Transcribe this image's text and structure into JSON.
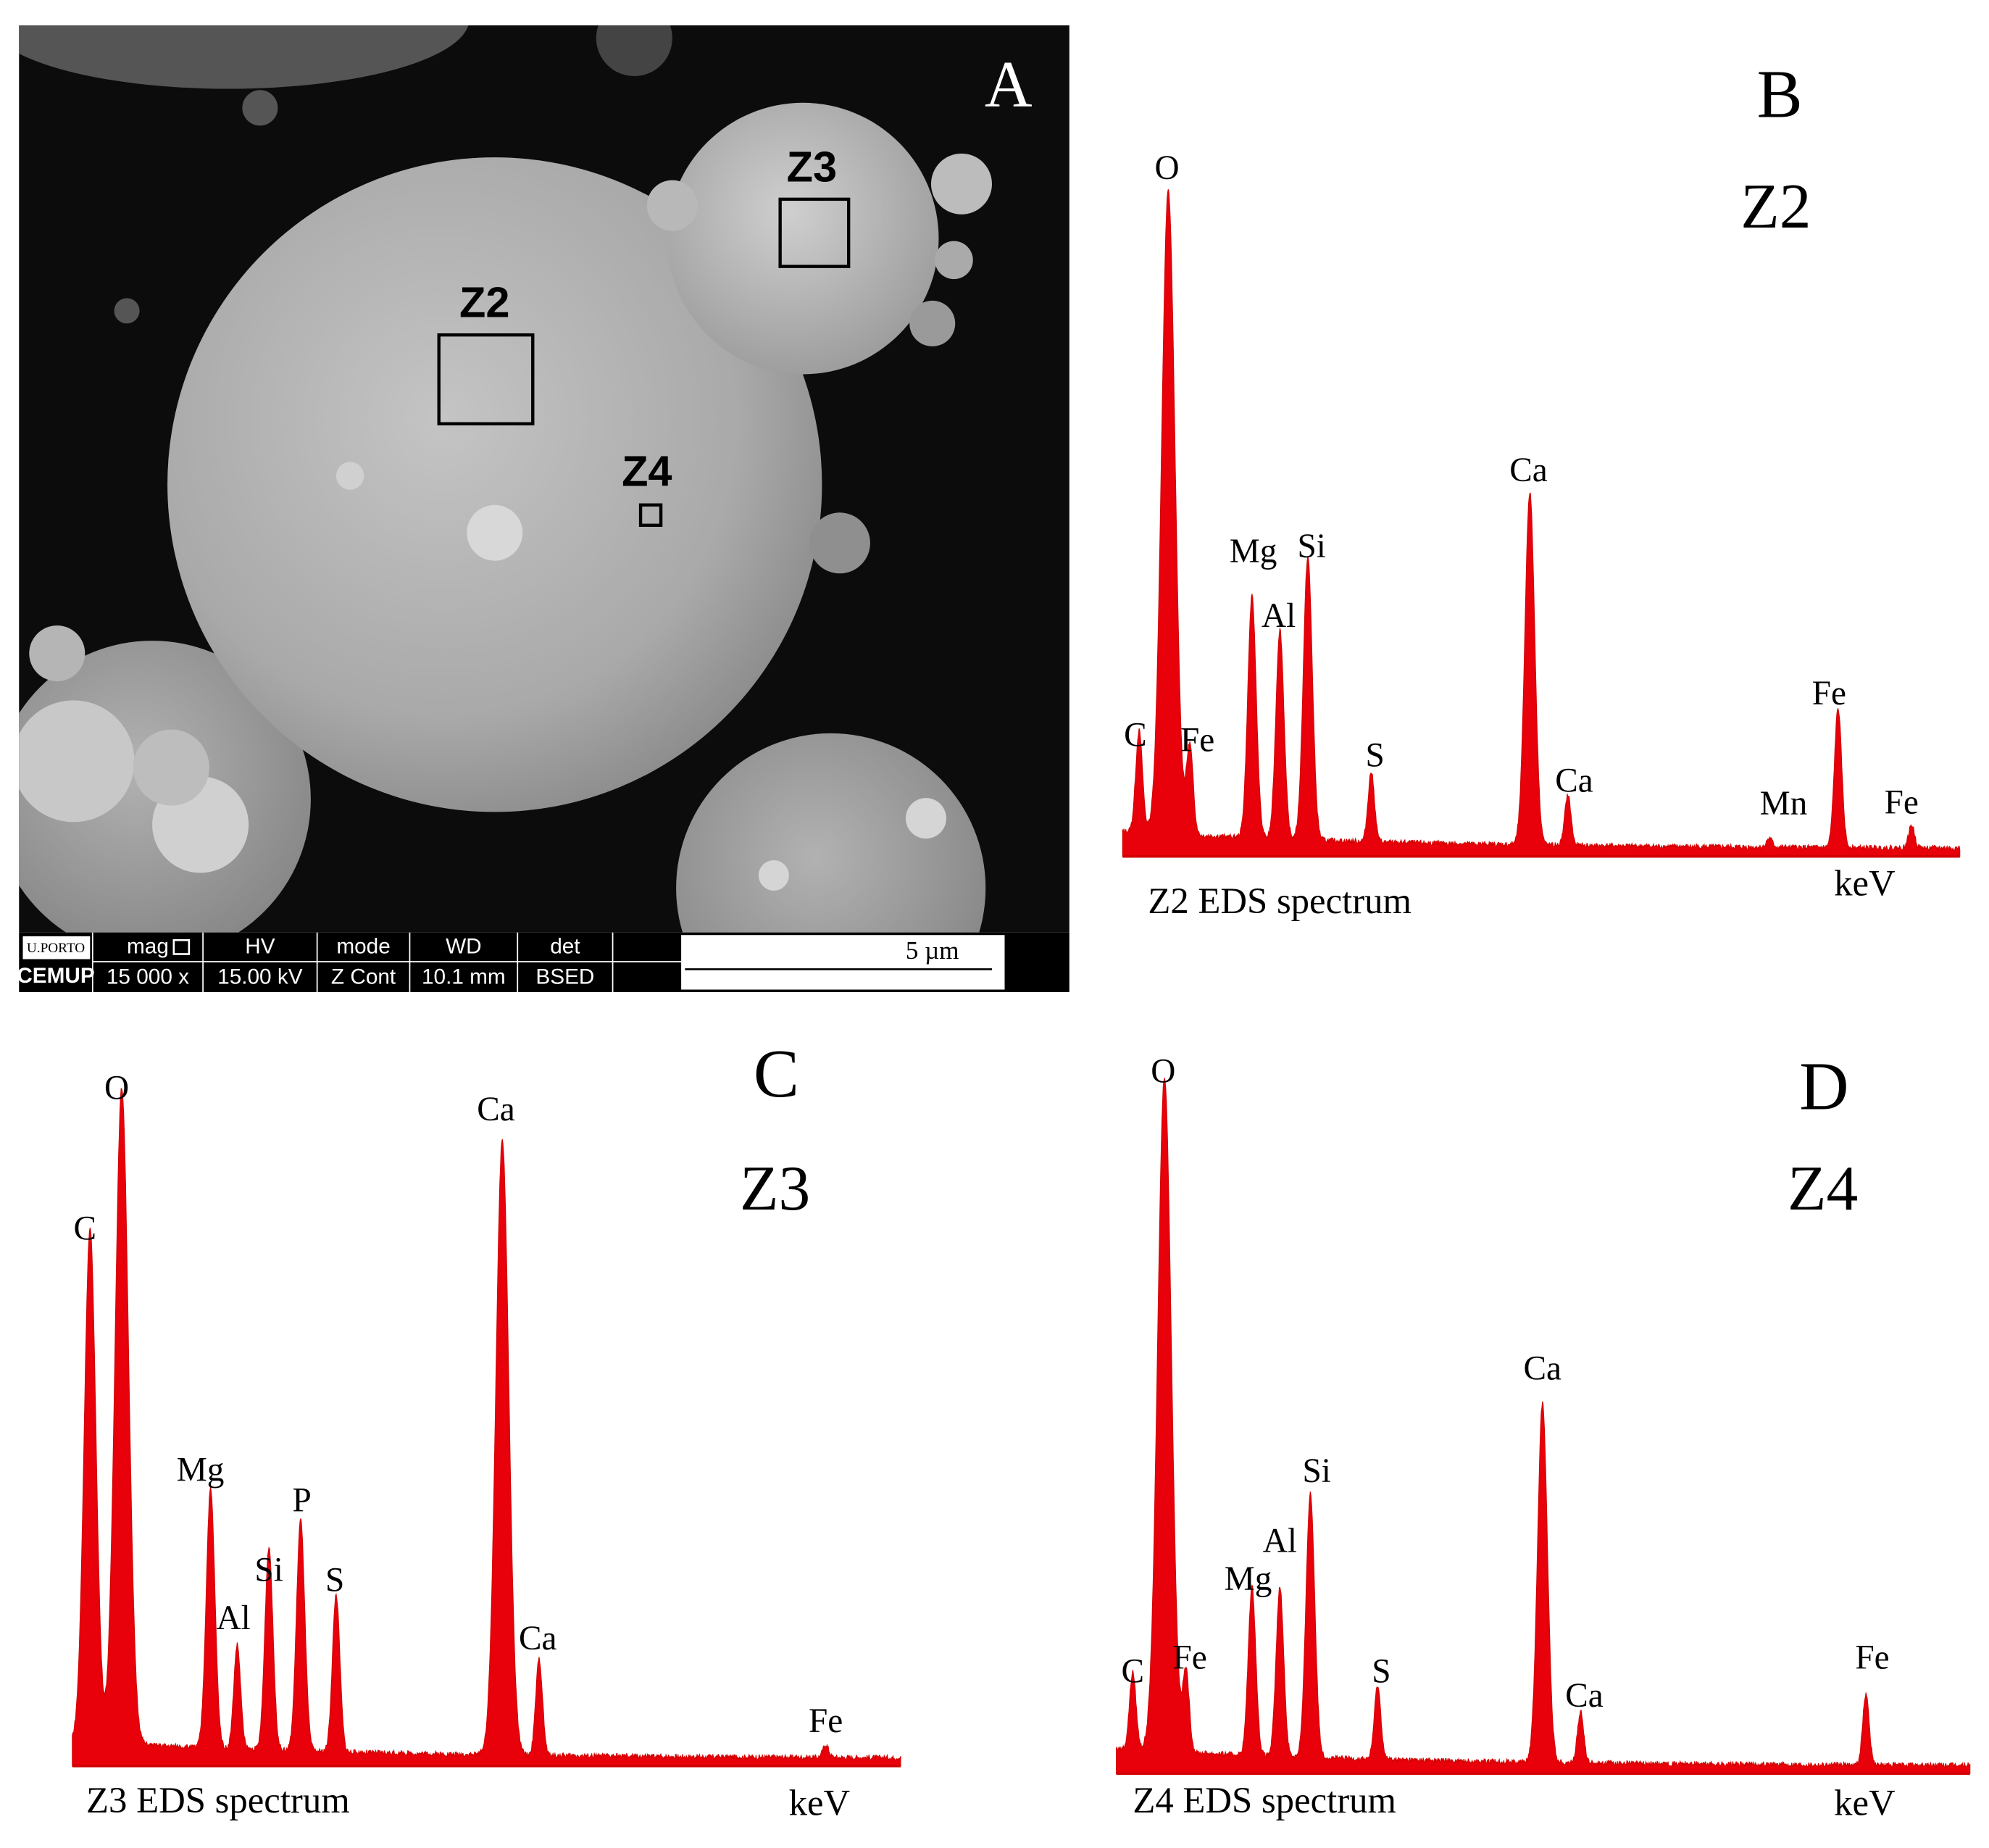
{
  "sem_image": {
    "letter": "A",
    "zones": [
      "Z2",
      "Z3",
      "Z4"
    ],
    "databar": {
      "logo_top": "U.PORTO",
      "logo_bottom": "CEMUP",
      "headers": [
        "mag",
        "HV",
        "mode",
        "WD",
        "det"
      ],
      "values": [
        "15 000 x",
        "15.00 kV",
        "Z Cont",
        "10.1 mm",
        "BSED"
      ],
      "scale": "5 µm"
    }
  },
  "spectra": [
    {
      "letter": "B",
      "zone": "Z2",
      "caption": "Z2 EDS spectrum",
      "unit": "keV",
      "peaks": [
        "C",
        "O",
        "Fe",
        "Mg",
        "Al",
        "Si",
        "S",
        "Ca",
        "Ca",
        "Mn",
        "Fe",
        "Fe"
      ]
    },
    {
      "letter": "C",
      "zone": "Z3",
      "caption": "Z3 EDS spectrum",
      "unit": "keV",
      "peaks": [
        "C",
        "O",
        "Mg",
        "Al",
        "Si",
        "P",
        "S",
        "Ca",
        "Ca",
        "Fe"
      ]
    },
    {
      "letter": "D",
      "zone": "Z4",
      "caption": "Z4 EDS spectrum",
      "unit": "keV",
      "peaks": [
        "C",
        "O",
        "Fe",
        "Mg",
        "Al",
        "Si",
        "S",
        "Ca",
        "Ca",
        "Fe"
      ]
    }
  ]
}
